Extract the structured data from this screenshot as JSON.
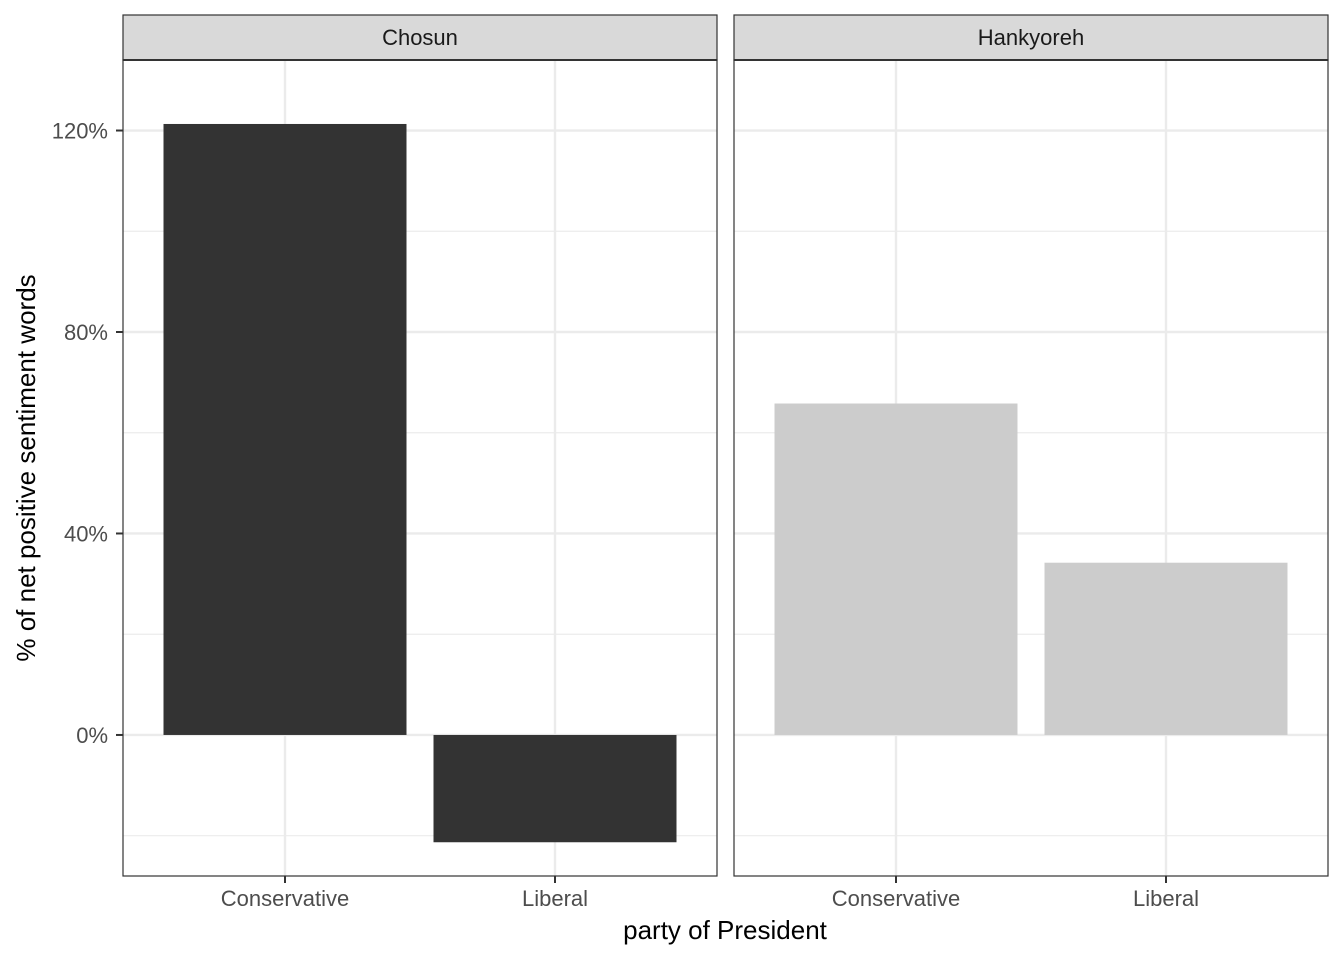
{
  "chart_data": {
    "type": "bar",
    "facet_by": "newspaper",
    "xlabel": "party of President",
    "ylabel": "% of net positive sentiment words",
    "ylim": [
      -28,
      134
    ],
    "yticks": [
      0,
      40,
      80,
      120
    ],
    "ytick_labels": [
      "0%",
      "40%",
      "80%",
      "120%"
    ],
    "categories": [
      "Conservative",
      "Liberal"
    ],
    "grid": true,
    "legend": "none",
    "panels": [
      {
        "title": "Chosun",
        "color": "#333333",
        "values": [
          121.3,
          -21.3
        ]
      },
      {
        "title": "Hankyoreh",
        "color": "#cccccc",
        "values": [
          65.8,
          34.2
        ]
      }
    ]
  }
}
